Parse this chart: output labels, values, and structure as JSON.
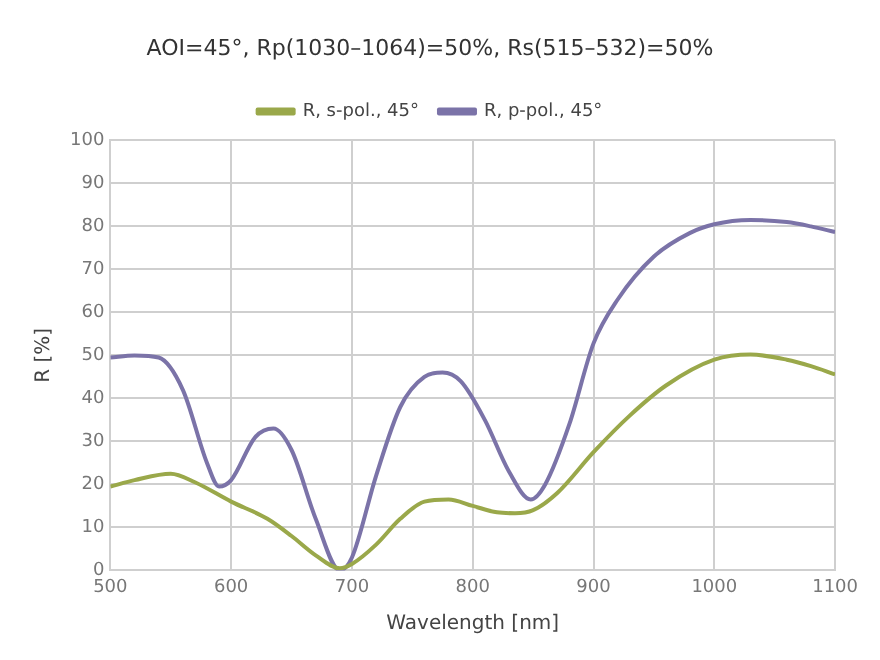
{
  "chart_data": {
    "type": "line",
    "title": "AOI=45°, Rp(1030–1064)=50%, Rs(515–532)=50%",
    "xlabel": "Wavelength [nm]",
    "ylabel": "R [%]",
    "xlim": [
      500,
      1100
    ],
    "xticks": [
      500,
      600,
      700,
      800,
      900,
      1000,
      1100
    ],
    "ylim": [
      0,
      100
    ],
    "yticks": [
      0,
      10,
      20,
      30,
      40,
      50,
      60,
      70,
      80,
      90,
      100
    ],
    "grid": true,
    "legend": "top",
    "marker": "none",
    "line_style": "solid",
    "series": [
      {
        "name": "R, s-pol., 45°",
        "color": "#9aa84a",
        "x": [
          500,
          520,
          550,
          570,
          600,
          630,
          650,
          670,
          690,
          700,
          720,
          740,
          760,
          780,
          800,
          820,
          835,
          850,
          870,
          900,
          930,
          960,
          1000,
          1030,
          1060,
          1080,
          1100
        ],
        "values": [
          19.5,
          21,
          22.5,
          20.5,
          16,
          12,
          8,
          3.5,
          0.5,
          1.5,
          6,
          12,
          16,
          16.5,
          15,
          13.5,
          13.3,
          14,
          18,
          27.5,
          36,
          43,
          49,
          50.2,
          49,
          47.5,
          45.6
        ]
      },
      {
        "name": "R, p-pol., 45°",
        "color": "#7b73a8",
        "x": [
          500,
          520,
          540,
          560,
          580,
          590,
          600,
          620,
          635,
          650,
          670,
          690,
          700,
          720,
          740,
          760,
          775,
          790,
          810,
          830,
          848,
          860,
          880,
          900,
          920,
          950,
          980,
          1000,
          1030,
          1060,
          1080,
          1100
        ],
        "values": [
          49.5,
          50,
          49.5,
          42,
          25,
          19.5,
          21,
          31,
          33,
          28,
          12,
          0,
          3,
          22,
          38,
          45,
          46,
          44,
          35,
          23,
          16.5,
          20,
          34,
          52.8,
          63,
          73,
          78.5,
          80.5,
          81.5,
          81,
          80,
          78.7
        ]
      }
    ]
  }
}
